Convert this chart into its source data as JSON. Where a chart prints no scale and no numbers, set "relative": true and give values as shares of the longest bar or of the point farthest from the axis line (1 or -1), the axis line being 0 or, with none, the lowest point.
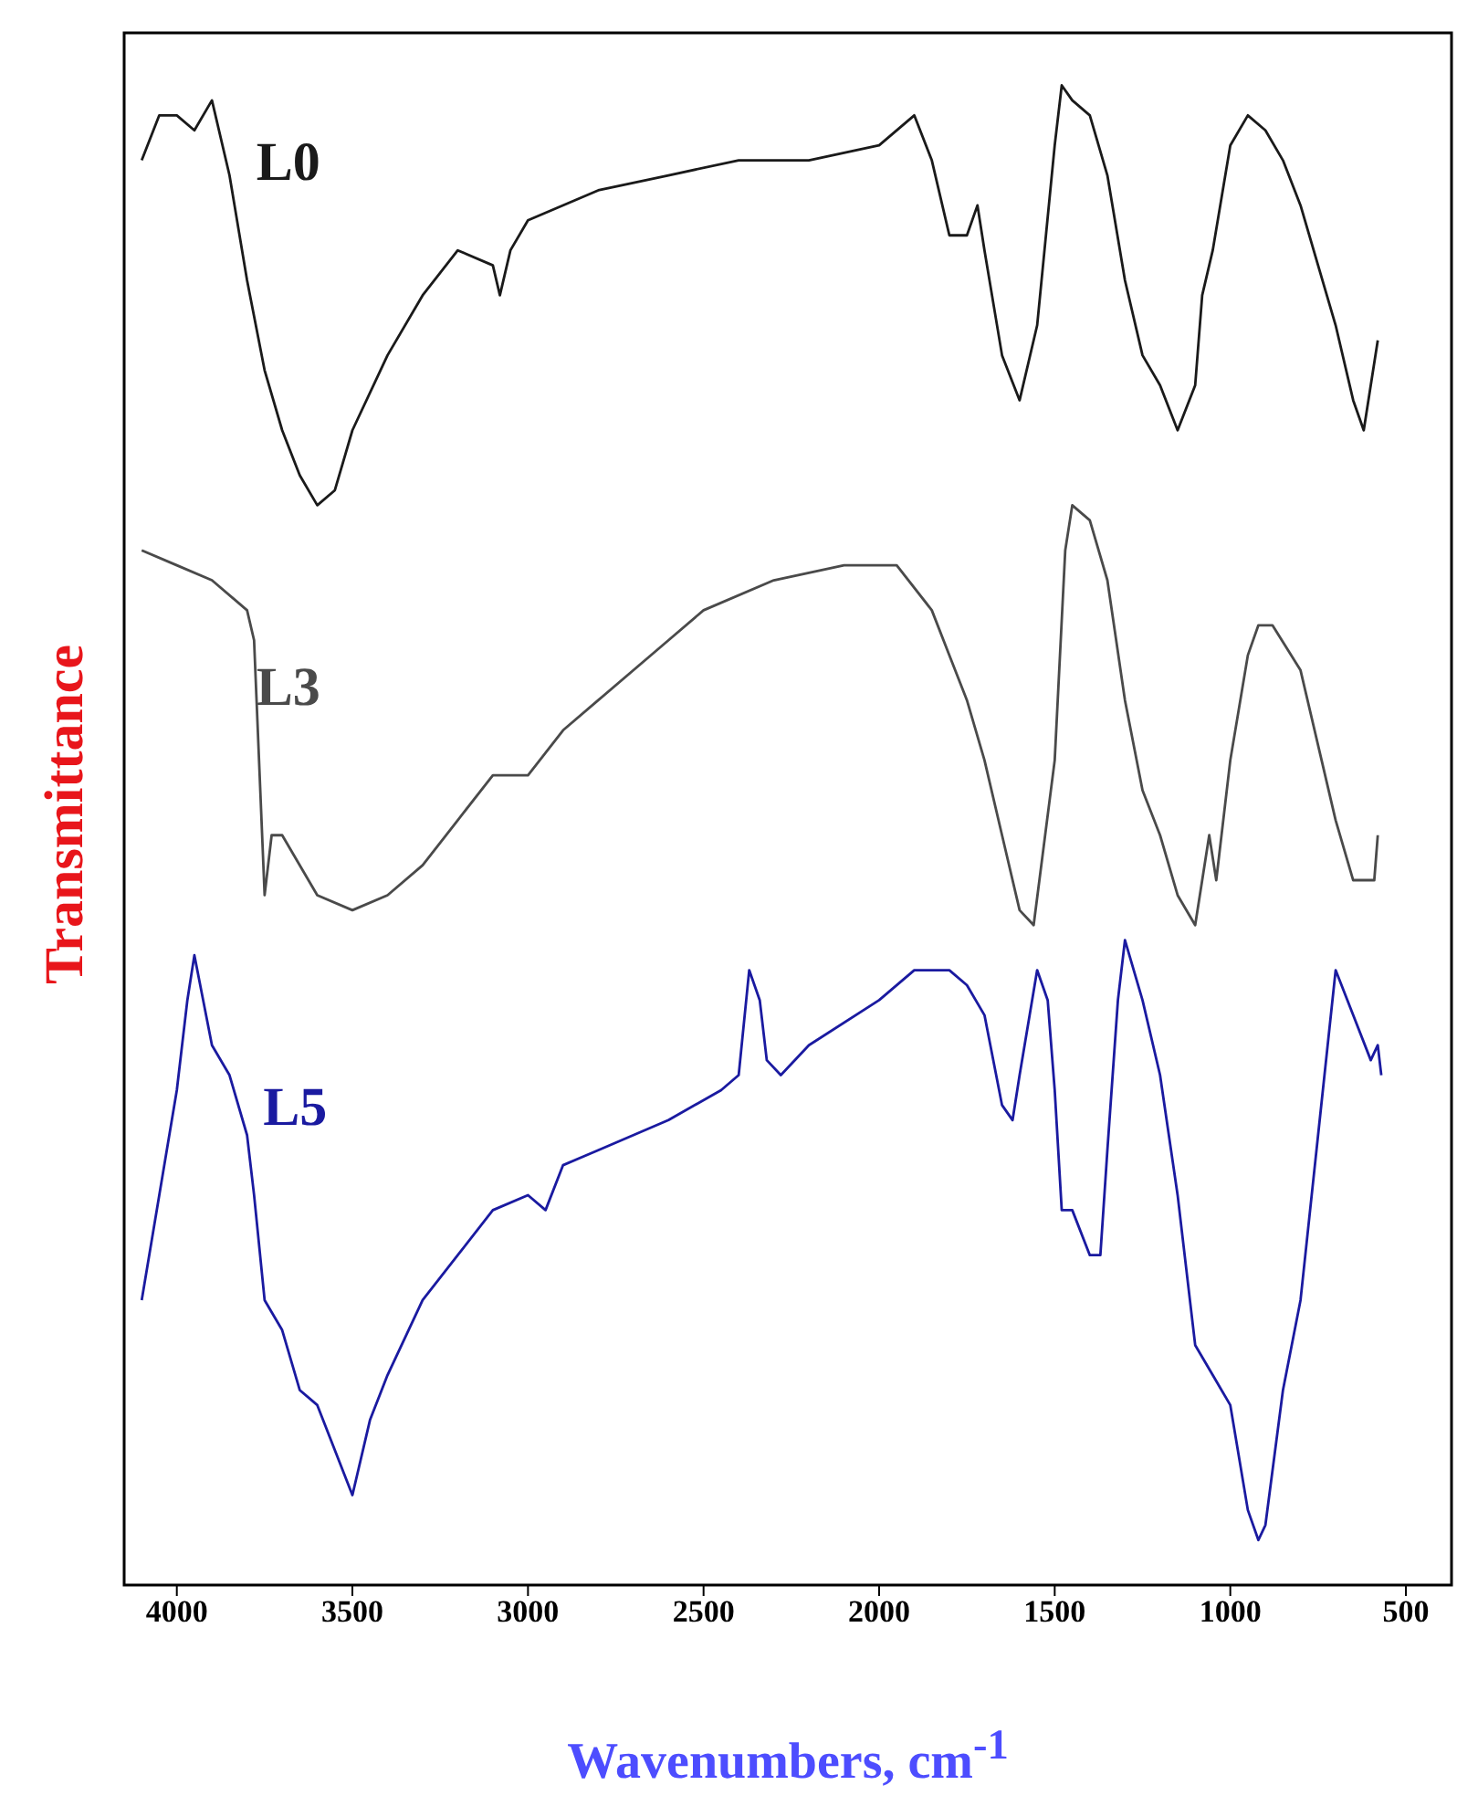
{
  "chart_data": {
    "type": "line",
    "relative": true,
    "xlabel": "Wavenumbers, cm$^{-1}$",
    "ylabel": "Transmittance",
    "xlim": [
      4150,
      370
    ],
    "xticks": [
      4000,
      3500,
      3000,
      2500,
      2000,
      1500,
      1000,
      500
    ],
    "marker": "none",
    "line_style": "solid",
    "series": [
      {
        "name": "L0",
        "color": "#1a1a1a",
        "x": [
          4100,
          4050,
          4000,
          3950,
          3900,
          3850,
          3800,
          3750,
          3700,
          3650,
          3600,
          3550,
          3500,
          3400,
          3300,
          3200,
          3100,
          3080,
          3050,
          3000,
          2800,
          2600,
          2400,
          2200,
          2000,
          1900,
          1850,
          1800,
          1750,
          1720,
          1700,
          1650,
          1600,
          1550,
          1500,
          1480,
          1450,
          1400,
          1350,
          1300,
          1250,
          1200,
          1150,
          1100,
          1080,
          1050,
          1000,
          950,
          900,
          850,
          800,
          750,
          700,
          650,
          620,
          580
        ],
        "values": [
          0.95,
          0.98,
          0.98,
          0.97,
          0.99,
          0.94,
          0.87,
          0.81,
          0.77,
          0.74,
          0.72,
          0.73,
          0.77,
          0.82,
          0.86,
          0.89,
          0.88,
          0.86,
          0.89,
          0.91,
          0.93,
          0.94,
          0.95,
          0.95,
          0.96,
          0.98,
          0.95,
          0.9,
          0.9,
          0.92,
          0.89,
          0.82,
          0.79,
          0.84,
          0.96,
          1,
          0.99,
          0.98,
          0.94,
          0.87,
          0.82,
          0.8,
          0.77,
          0.8,
          0.86,
          0.89,
          0.96,
          0.98,
          0.97,
          0.95,
          0.92,
          0.88,
          0.84,
          0.79,
          0.77,
          0.83
        ]
      },
      {
        "name": "L3",
        "color": "#4a4a4a",
        "x": [
          4100,
          4000,
          3900,
          3800,
          3780,
          3750,
          3730,
          3700,
          3600,
          3500,
          3400,
          3300,
          3200,
          3100,
          3050,
          3000,
          2900,
          2800,
          2600,
          2500,
          2300,
          2100,
          1950,
          1850,
          1800,
          1750,
          1700,
          1650,
          1600,
          1560,
          1500,
          1470,
          1450,
          1400,
          1350,
          1300,
          1250,
          1200,
          1150,
          1100,
          1060,
          1040,
          1000,
          950,
          920,
          880,
          800,
          740,
          700,
          650,
          620,
          590,
          580
        ],
        "values": [
          0.69,
          0.68,
          0.67,
          0.65,
          0.63,
          0.46,
          0.5,
          0.5,
          0.46,
          0.45,
          0.46,
          0.48,
          0.51,
          0.54,
          0.54,
          0.54,
          0.57,
          0.59,
          0.63,
          0.65,
          0.67,
          0.68,
          0.68,
          0.65,
          0.62,
          0.59,
          0.55,
          0.5,
          0.45,
          0.44,
          0.55,
          0.69,
          0.72,
          0.71,
          0.67,
          0.59,
          0.53,
          0.5,
          0.46,
          0.44,
          0.5,
          0.47,
          0.55,
          0.62,
          0.64,
          0.64,
          0.61,
          0.55,
          0.51,
          0.47,
          0.47,
          0.47,
          0.5
        ]
      },
      {
        "name": "L5",
        "color": "#1a1aa0",
        "x": [
          4100,
          4050,
          4000,
          3970,
          3950,
          3900,
          3850,
          3800,
          3780,
          3750,
          3700,
          3650,
          3600,
          3550,
          3500,
          3450,
          3400,
          3300,
          3200,
          3100,
          3000,
          2950,
          2900,
          2800,
          2600,
          2450,
          2400,
          2370,
          2340,
          2320,
          2280,
          2200,
          2000,
          1900,
          1800,
          1750,
          1700,
          1650,
          1620,
          1600,
          1550,
          1520,
          1500,
          1480,
          1450,
          1400,
          1370,
          1350,
          1320,
          1300,
          1250,
          1200,
          1150,
          1100,
          1050,
          1000,
          950,
          920,
          900,
          850,
          800,
          750,
          700,
          650,
          600,
          580,
          570
        ],
        "values": [
          0.19,
          0.26,
          0.33,
          0.39,
          0.42,
          0.36,
          0.34,
          0.3,
          0.26,
          0.19,
          0.17,
          0.13,
          0.12,
          0.09,
          0.06,
          0.11,
          0.14,
          0.19,
          0.22,
          0.25,
          0.26,
          0.25,
          0.28,
          0.29,
          0.31,
          0.33,
          0.34,
          0.41,
          0.39,
          0.35,
          0.34,
          0.36,
          0.39,
          0.41,
          0.41,
          0.4,
          0.38,
          0.32,
          0.31,
          0.34,
          0.41,
          0.39,
          0.33,
          0.25,
          0.25,
          0.22,
          0.22,
          0.29,
          0.39,
          0.43,
          0.39,
          0.34,
          0.26,
          0.16,
          0.14,
          0.12,
          0.05,
          0.03,
          0.04,
          0.13,
          0.19,
          0.3,
          0.41,
          0.38,
          0.35,
          0.36,
          0.34
        ]
      }
    ]
  }
}
